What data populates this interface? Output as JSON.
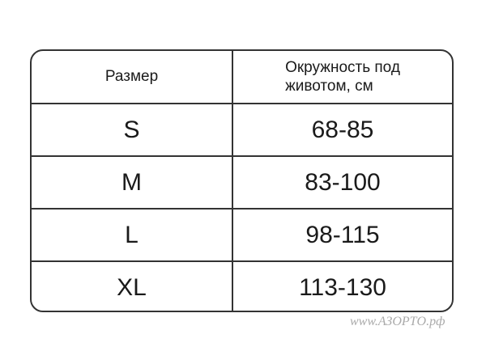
{
  "table": {
    "headers": [
      "Размер",
      "Окружность под животом, см"
    ],
    "header2_lines": [
      "Окружность под",
      "животом, см"
    ],
    "rows": [
      [
        "S",
        "68-85"
      ],
      [
        "M",
        "83-100"
      ],
      [
        "L",
        "98-115"
      ],
      [
        "XL",
        "113-130"
      ]
    ]
  },
  "watermark": "www.АЗОРТО.рф"
}
